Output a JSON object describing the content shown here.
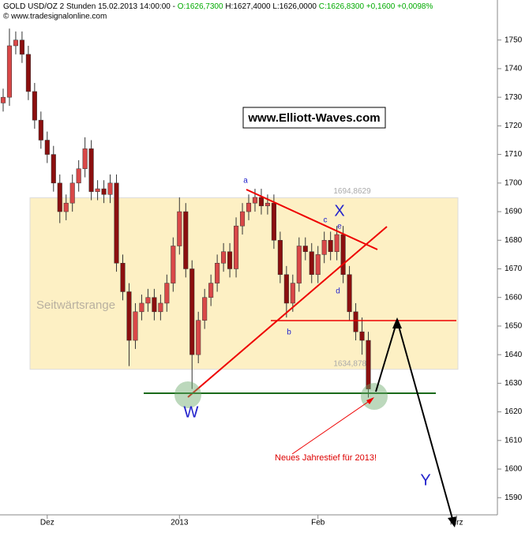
{
  "chart_data": {
    "type": "candlestick",
    "header": {
      "symbol": "GOLD USD/OZ 2 Stunden",
      "time": "15.02.2013 14:00:00 -",
      "open": "O:1626,7300",
      "hl": "H:1627,4000 L:1626,0000",
      "close": "C:1626,8300 +0,1600 +0,0098%"
    },
    "source": "© www.tradesignalonline.com",
    "watermark": "www.Elliott-Waves.com",
    "range_label": "Seitwärtsrange",
    "range": {
      "top": {
        "value": 1694.8629,
        "label": "1694,8629"
      },
      "bottom": {
        "value": 1634.8786,
        "label": "1634,8786"
      }
    },
    "waves": {
      "a": "a",
      "b": "b",
      "c": "c",
      "d": "d",
      "e": "e",
      "X": "X",
      "W": "W",
      "Y": "Y"
    },
    "note": "Neues Jahrestief für 2013!",
    "colors": {
      "up": "#d94848",
      "down": "#8b0f0f",
      "wick": "#333333",
      "range": "#fdf0c4"
    },
    "categories": [
      null,
      null,
      null,
      null,
      null,
      null,
      null,
      "Dez",
      null,
      null,
      null,
      null,
      null,
      null,
      null,
      null,
      null,
      null,
      null,
      null,
      null,
      null,
      null,
      null,
      null,
      null,
      null,
      null,
      "2013",
      null,
      null,
      null,
      null,
      null,
      null,
      null,
      null,
      null,
      null,
      null,
      null,
      null,
      null,
      null,
      null,
      null,
      null,
      null,
      null,
      null,
      "Feb",
      null,
      null,
      null,
      null,
      null,
      null,
      null,
      null,
      null,
      null,
      null,
      null,
      null,
      null,
      null,
      null,
      null,
      null,
      null,
      null,
      null,
      "Mrz",
      null,
      null,
      null,
      null,
      null,
      null
    ],
    "open": [
      1728,
      1730,
      1748,
      1750,
      1745,
      1732,
      1722,
      1715,
      1710,
      1700,
      1690,
      1693,
      1700,
      1705,
      1712,
      1697,
      1698,
      1696,
      1700,
      1672,
      1662,
      1645,
      1655,
      1658,
      1660,
      1655,
      1658,
      1665,
      1678,
      1690,
      1670,
      1640,
      1652,
      1660,
      1665,
      1672,
      1676,
      1670,
      1685,
      1690,
      1693,
      1695,
      1692,
      1693,
      1680,
      1668,
      1658,
      1665,
      1678,
      1676,
      1668,
      1675,
      1680,
      1676,
      1682,
      1668,
      1655,
      1648,
      1645,
      null,
      null,
      null,
      null,
      null,
      null,
      null,
      null,
      null,
      null,
      null,
      null,
      null,
      null,
      null,
      null,
      null,
      null,
      null,
      null
    ],
    "high": [
      1733,
      1754,
      1753,
      1753,
      1748,
      1735,
      1725,
      1718,
      1713,
      1703,
      1696,
      1703,
      1708,
      1716,
      1715,
      1701,
      1701,
      1703,
      1703,
      1675,
      1665,
      1658,
      1661,
      1663,
      1663,
      1661,
      1668,
      1681,
      1695,
      1693,
      1673,
      1655,
      1663,
      1668,
      1675,
      1679,
      1679,
      1688,
      1693,
      1696,
      1698,
      1698,
      1696,
      1696,
      1683,
      1671,
      1668,
      1681,
      1681,
      1679,
      1678,
      1683,
      1683,
      1685,
      1685,
      1671,
      1658,
      1653,
      1648,
      null,
      null,
      null,
      null,
      null,
      null,
      null,
      null,
      null,
      null,
      null,
      null,
      null,
      null,
      null,
      null,
      null,
      null,
      null,
      null
    ],
    "low": [
      1725,
      1727,
      1745,
      1742,
      1729,
      1719,
      1712,
      1707,
      1697,
      1686,
      1687,
      1690,
      1697,
      1702,
      1694,
      1694,
      1693,
      1693,
      1669,
      1659,
      1636,
      1642,
      1652,
      1655,
      1652,
      1652,
      1655,
      1662,
      1675,
      1667,
      1628,
      1637,
      1649,
      1657,
      1662,
      1669,
      1667,
      1667,
      1682,
      1687,
      1690,
      1689,
      1689,
      1677,
      1665,
      1653,
      1655,
      1662,
      1673,
      1665,
      1665,
      1672,
      1673,
      1673,
      1665,
      1652,
      1645,
      1640,
      1625,
      null,
      null,
      null,
      null,
      null,
      null,
      null,
      null,
      null,
      null,
      null,
      null,
      null,
      null,
      null,
      null,
      null,
      null,
      null,
      null
    ],
    "close": [
      1730,
      1748,
      1750,
      1745,
      1732,
      1722,
      1715,
      1710,
      1700,
      1690,
      1693,
      1700,
      1705,
      1712,
      1697,
      1698,
      1696,
      1700,
      1672,
      1662,
      1645,
      1655,
      1658,
      1660,
      1655,
      1658,
      1665,
      1678,
      1690,
      1670,
      1640,
      1652,
      1660,
      1665,
      1672,
      1676,
      1670,
      1685,
      1690,
      1693,
      1695,
      1692,
      1693,
      1680,
      1668,
      1658,
      1665,
      1678,
      1676,
      1668,
      1675,
      1680,
      1676,
      1682,
      1668,
      1655,
      1648,
      1645,
      1628,
      null,
      null,
      null,
      null,
      null,
      null,
      null,
      null,
      null,
      null,
      null,
      null,
      null,
      null,
      null,
      null,
      null,
      null,
      null,
      null
    ],
    "ylim": [
      1584,
      1764
    ],
    "yticks": [
      1590,
      1600,
      1610,
      1620,
      1630,
      1640,
      1650,
      1660,
      1670,
      1680,
      1690,
      1700,
      1710,
      1720,
      1730,
      1740,
      1750
    ]
  }
}
